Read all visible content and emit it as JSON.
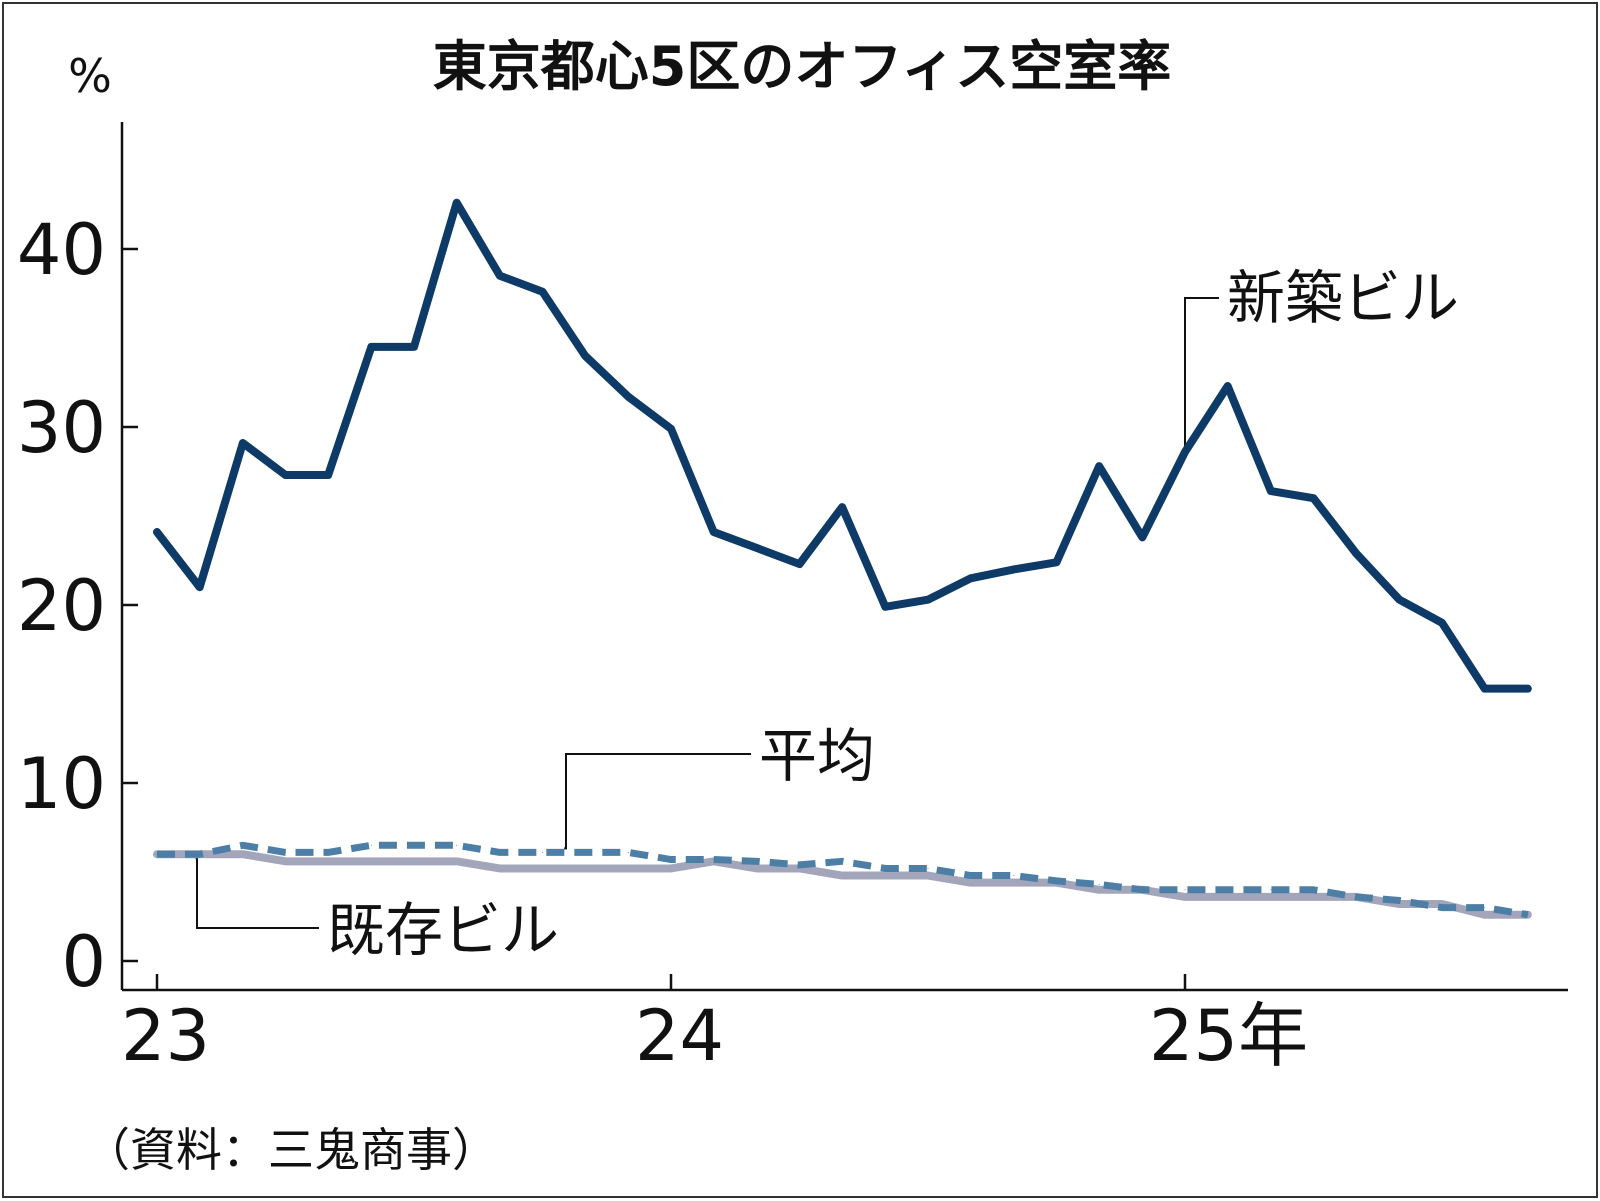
{
  "chart_data": {
    "type": "line",
    "title": "東京都心5区のオフィス空室率",
    "ylabel": "%",
    "ylim": [
      0,
      45
    ],
    "yticks": [
      0,
      10,
      20,
      30,
      40
    ],
    "xticks": [
      {
        "x": 2023.0,
        "label": "23"
      },
      {
        "x": 2024.0,
        "label": "24"
      },
      {
        "x": 2025.0,
        "label": "25年"
      }
    ],
    "x": [
      2023.0,
      2023.083,
      2023.167,
      2023.25,
      2023.333,
      2023.417,
      2023.5,
      2023.583,
      2023.667,
      2023.75,
      2023.833,
      2023.917,
      2024.0,
      2024.083,
      2024.167,
      2024.25,
      2024.333,
      2024.417,
      2024.5,
      2024.583,
      2024.667,
      2024.75,
      2024.833,
      2024.917,
      2025.0,
      2025.083,
      2025.167,
      2025.25,
      2025.333,
      2025.417,
      2025.5,
      2025.583,
      2025.667
    ],
    "series": [
      {
        "name": "新築ビル",
        "color": "#0d3a66",
        "style": "solid",
        "values": [
          24.1,
          21.0,
          29.1,
          27.3,
          27.3,
          34.5,
          34.5,
          42.6,
          38.5,
          37.6,
          34.0,
          31.7,
          29.9,
          24.1,
          23.2,
          22.3,
          25.5,
          19.9,
          20.3,
          21.5,
          22.0,
          22.4,
          27.8,
          23.8,
          28.6,
          32.3,
          26.4,
          26.0,
          22.9,
          20.3,
          19.0,
          15.3,
          15.3
        ]
      },
      {
        "name": "平均",
        "color": "#4d7fa6",
        "style": "dashed",
        "values": [
          6.0,
          6.0,
          6.5,
          6.1,
          6.1,
          6.5,
          6.5,
          6.5,
          6.1,
          6.1,
          6.1,
          6.1,
          5.7,
          5.7,
          5.6,
          5.4,
          5.6,
          5.2,
          5.2,
          4.8,
          4.8,
          4.5,
          4.3,
          4.0,
          4.0,
          4.0,
          4.0,
          4.0,
          3.6,
          3.4,
          3.0,
          3.0,
          2.6
        ]
      },
      {
        "name": "既存ビル",
        "color": "#a3a6ba",
        "style": "solid",
        "values": [
          6.0,
          6.0,
          6.0,
          5.6,
          5.6,
          5.6,
          5.6,
          5.6,
          5.2,
          5.2,
          5.2,
          5.2,
          5.2,
          5.6,
          5.2,
          5.2,
          4.8,
          4.8,
          4.8,
          4.4,
          4.4,
          4.4,
          4.0,
          4.0,
          3.6,
          3.6,
          3.6,
          3.6,
          3.6,
          3.2,
          3.2,
          2.6,
          2.6
        ]
      }
    ],
    "source": "（資料：三鬼商事）"
  }
}
